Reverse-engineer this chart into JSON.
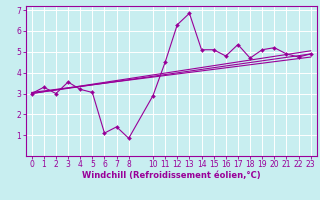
{
  "background_color": "#c8eef0",
  "grid_color": "#ffffff",
  "line_color": "#990099",
  "xlabel": "Windchill (Refroidissement éolien,°C)",
  "xlabel_fontsize": 6,
  "xlim": [
    -0.5,
    23.5
  ],
  "ylim": [
    0,
    7.2
  ],
  "xticks": [
    0,
    1,
    2,
    3,
    4,
    5,
    6,
    7,
    8,
    10,
    11,
    12,
    13,
    14,
    15,
    16,
    17,
    18,
    19,
    20,
    21,
    22,
    23
  ],
  "yticks": [
    1,
    2,
    3,
    4,
    5,
    6,
    7
  ],
  "tick_fontsize": 5.5,
  "line1_x": [
    0,
    1,
    2,
    3,
    4,
    5,
    6,
    7,
    8,
    10,
    11,
    12,
    13,
    14,
    15,
    16,
    17,
    18,
    19,
    20,
    21,
    22,
    23
  ],
  "line1_y": [
    3.0,
    3.3,
    3.0,
    3.55,
    3.2,
    3.05,
    1.1,
    1.4,
    0.85,
    2.9,
    4.5,
    6.3,
    6.85,
    5.1,
    5.1,
    4.8,
    5.35,
    4.7,
    5.1,
    5.2,
    4.9,
    4.75,
    4.9
  ],
  "line2_x": [
    0,
    23
  ],
  "line2_y": [
    3.0,
    4.9
  ],
  "line3_x": [
    0,
    23
  ],
  "line3_y": [
    3.05,
    4.75
  ],
  "line4_x": [
    0,
    23
  ],
  "line4_y": [
    3.0,
    5.05
  ],
  "spine_color": "#990099",
  "spine_linewidth": 0.8
}
